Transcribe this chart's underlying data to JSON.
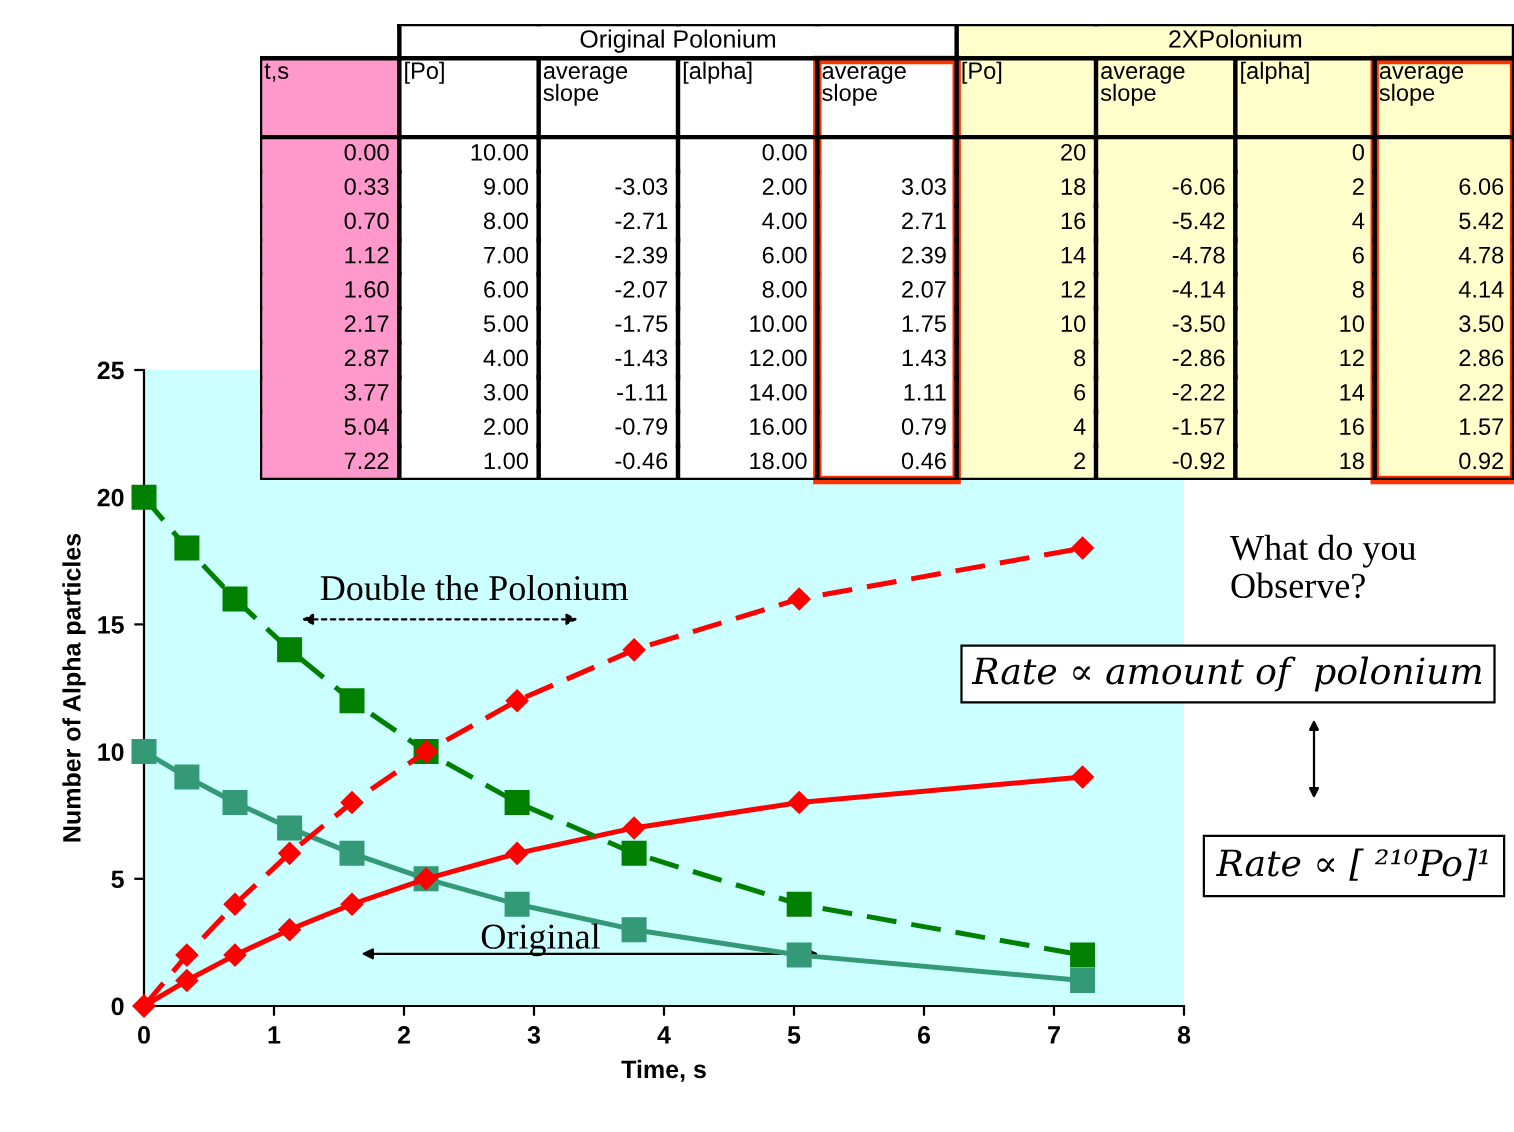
{
  "chart_data": [
    {
      "type": "line",
      "xlabel": "Time, s",
      "ylabel": "Number of Alpha particles",
      "xlim": [
        0,
        8
      ],
      "xticks": [
        0,
        1,
        2,
        3,
        4,
        5,
        6,
        7,
        8
      ],
      "ylim": [
        0,
        25
      ],
      "yticks": [
        0,
        5,
        10,
        15,
        20,
        25
      ],
      "grid": false,
      "legend": false,
      "x": [
        0,
        0.33,
        0.7,
        1.12,
        1.6,
        2.17,
        2.87,
        3.77,
        5.04,
        7.22
      ],
      "series": [
        {
          "color": "#339977",
          "marker": "square",
          "line_style": "solid",
          "values": [
            10,
            9,
            8,
            7,
            6,
            5,
            4,
            3,
            2,
            1
          ]
        },
        {
          "color": "#ff0000",
          "marker": "diamond",
          "line_style": "solid",
          "values": [
            0,
            1,
            2,
            3,
            4,
            5,
            6,
            7,
            8,
            9
          ]
        },
        {
          "color": "#008000",
          "marker": "square",
          "line_style": "dashed",
          "values": [
            20,
            18,
            16,
            14,
            12,
            10,
            8,
            6,
            4,
            2
          ]
        },
        {
          "color": "#ff0000",
          "marker": "diamond",
          "line_style": "dashed",
          "values": [
            0,
            2,
            4,
            6,
            8,
            10,
            12,
            14,
            16,
            18
          ]
        }
      ],
      "annotations": [
        "Double the Polonium",
        "Original",
        "What do you\nObserve?",
        "Rate ∝ amount of  polonium",
        "Rate ∝ [ ²¹⁰Po]¹"
      ]
    },
    {
      "type": "other",
      "annotations": [
        "Original Polonium",
        "2XPolonium"
      ],
      "categories": [
        "t,s",
        "[Po]",
        "average\nslope",
        "[alpha]",
        "average\nslope",
        "[Po]",
        "average\nslope",
        "[alpha]",
        "average\nslope"
      ],
      "colors": [
        "#ff99cc",
        "#ffffff",
        "#ffffff",
        "#ffffff",
        "#ffffff",
        "#ffffcc",
        "#ffffcc",
        "#ffffcc",
        "#ffffcc"
      ],
      "cell_labels": [
        [
          "0.00",
          "10.00",
          null,
          "0.00",
          null,
          "20",
          null,
          "0",
          null
        ],
        [
          "0.33",
          "9.00",
          "-3.03",
          "2.00",
          "3.03",
          "18",
          "-6.06",
          "2",
          "6.06"
        ],
        [
          "0.70",
          "8.00",
          "-2.71",
          "4.00",
          "2.71",
          "16",
          "-5.42",
          "4",
          "5.42"
        ],
        [
          "1.12",
          "7.00",
          "-2.39",
          "6.00",
          "2.39",
          "14",
          "-4.78",
          "6",
          "4.78"
        ],
        [
          "1.60",
          "6.00",
          "-2.07",
          "8.00",
          "2.07",
          "12",
          "-4.14",
          "8",
          "4.14"
        ],
        [
          "2.17",
          "5.00",
          "-1.75",
          "10.00",
          "1.75",
          "10",
          "-3.50",
          "10",
          "3.50"
        ],
        [
          "2.87",
          "4.00",
          "-1.43",
          "12.00",
          "1.43",
          "8",
          "-2.86",
          "12",
          "2.86"
        ],
        [
          "3.77",
          "3.00",
          "-1.11",
          "14.00",
          "1.11",
          "6",
          "-2.22",
          "14",
          "2.22"
        ],
        [
          "5.04",
          "2.00",
          "-0.79",
          "16.00",
          "0.79",
          "4",
          "-1.57",
          "16",
          "1.57"
        ],
        [
          "7.22",
          "1.00",
          "-0.46",
          "18.00",
          "0.46",
          "2",
          "-0.92",
          "18",
          "0.92"
        ]
      ]
    }
  ]
}
